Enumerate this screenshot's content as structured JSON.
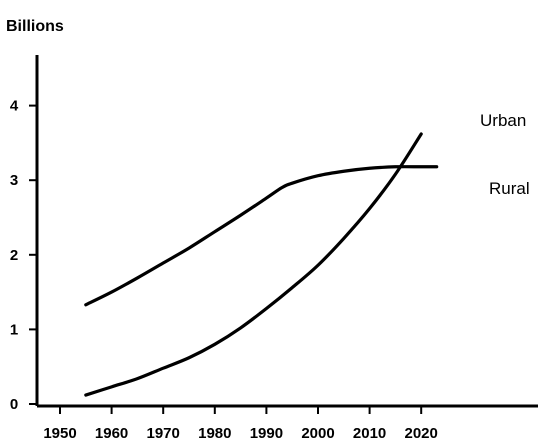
{
  "chart_data": {
    "type": "line",
    "title": "",
    "xlabel": "",
    "ylabel": "Billions",
    "xlim": [
      1947,
      2027
    ],
    "ylim": [
      0,
      5
    ],
    "x_ticks": [
      1950,
      1960,
      1970,
      1980,
      1990,
      2000,
      2010,
      2020
    ],
    "y_ticks": [
      0,
      1,
      2,
      3,
      4
    ],
    "grid": false,
    "legend": "none",
    "series": [
      {
        "name": "Urban",
        "x": [
          1955,
          1960,
          1965,
          1970,
          1975,
          1980,
          1985,
          1990,
          1995,
          2000,
          2005,
          2010,
          2015,
          2020
        ],
        "y": [
          0.12,
          0.23,
          0.34,
          0.48,
          0.62,
          0.8,
          1.02,
          1.28,
          1.56,
          1.86,
          2.22,
          2.62,
          3.08,
          3.62
        ]
      },
      {
        "name": "Rural",
        "x": [
          1955,
          1960,
          1965,
          1970,
          1975,
          1980,
          1985,
          1990,
          1993,
          1995,
          2000,
          2005,
          2010,
          2015,
          2020,
          2023
        ],
        "y": [
          1.33,
          1.5,
          1.69,
          1.89,
          2.09,
          2.31,
          2.53,
          2.76,
          2.9,
          2.96,
          3.06,
          3.12,
          3.16,
          3.18,
          3.18,
          3.18
        ]
      }
    ]
  }
}
